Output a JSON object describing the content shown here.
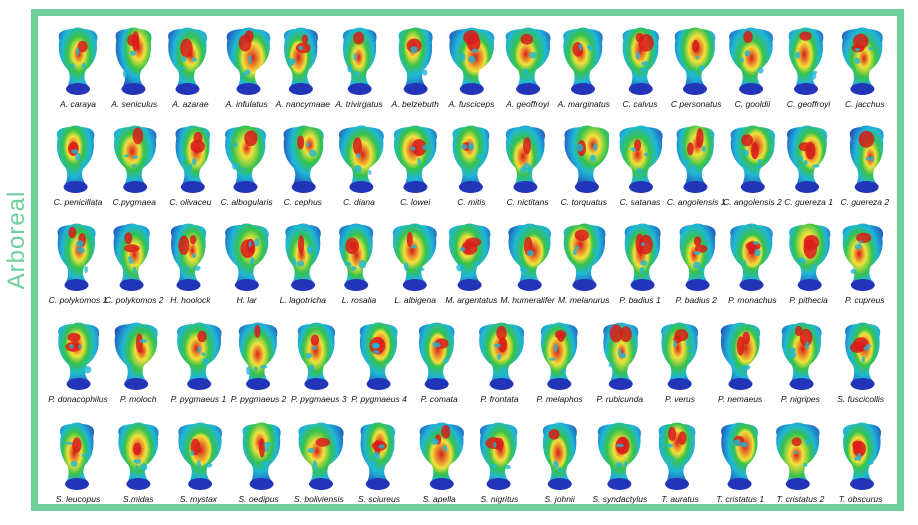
{
  "section_label": "Arboreal",
  "colors": {
    "frame": "#6fcf9a",
    "heat_low": "#2234b8",
    "heat_mid_low": "#1fb7d6",
    "heat_mid": "#37c24a",
    "heat_mid_high": "#f3e23a",
    "heat_high": "#d81b1b"
  },
  "rows": [
    {
      "items": [
        {
          "label": "A. caraya"
        },
        {
          "label": "A. seniculus"
        },
        {
          "label": "A. azarae"
        },
        {
          "label": "A. infulatus"
        },
        {
          "label": "A. nancymaae"
        },
        {
          "label": "A. trivirgatus"
        },
        {
          "label": "A. belzebuth"
        },
        {
          "label": "A. fusciceps"
        },
        {
          "label": "A. geoffroyi"
        },
        {
          "label": "A. marginatus"
        },
        {
          "label": "C. calvus"
        },
        {
          "label": "C personatus"
        },
        {
          "label": "C. gooldii"
        },
        {
          "label": "C. geoffroyi"
        },
        {
          "label": "C. jacchus"
        }
      ]
    },
    {
      "items": [
        {
          "label": "C. penicillata"
        },
        {
          "label": "C.pygmaea"
        },
        {
          "label": "C. olivaceu"
        },
        {
          "label": "C. albogularis"
        },
        {
          "label": "C. cephus"
        },
        {
          "label": "C. diana"
        },
        {
          "label": "C. lowei"
        },
        {
          "label": "C. mitis"
        },
        {
          "label": "C. nictitans"
        },
        {
          "label": "C. torquatus"
        },
        {
          "label": "C. satanas"
        },
        {
          "label": "C. angolensis 1"
        },
        {
          "label": "C. angolensis 2"
        },
        {
          "label": "C. guereza 1"
        },
        {
          "label": "C. guereza 2"
        }
      ]
    },
    {
      "items": [
        {
          "label": "C. polykomos 1"
        },
        {
          "label": "C. polykomos 2"
        },
        {
          "label": "H. hoolock"
        },
        {
          "label": "H. lar"
        },
        {
          "label": "L. lagotricha"
        },
        {
          "label": "L. rosalia"
        },
        {
          "label": "L. albigena"
        },
        {
          "label": "M. argentatus"
        },
        {
          "label": "M. humeralifer"
        },
        {
          "label": "M. melanurus"
        },
        {
          "label": "P. badius 1"
        },
        {
          "label": "P. badius 2"
        },
        {
          "label": "P. monachus"
        },
        {
          "label": "P. pithecia"
        },
        {
          "label": "P. cupreus"
        }
      ]
    },
    {
      "items": [
        {
          "label": "P. donacophilus"
        },
        {
          "label": "P. moloch"
        },
        {
          "label": "P. pygmaeus 1"
        },
        {
          "label": "P. pygmaeus 2"
        },
        {
          "label": "P. pygmaeus 3"
        },
        {
          "label": "P. pygmaeus 4"
        },
        {
          "label": "P. comata"
        },
        {
          "label": "P. frontata"
        },
        {
          "label": "P. melaphos"
        },
        {
          "label": "P. rubicunda"
        },
        {
          "label": "P. verus"
        },
        {
          "label": "P. nemaeus"
        },
        {
          "label": "P. nigripes"
        },
        {
          "label": "S. fuscicollis"
        }
      ]
    },
    {
      "items": [
        {
          "label": "S. leucopus"
        },
        {
          "label": "S.midas"
        },
        {
          "label": "S. mystax"
        },
        {
          "label": "S. oedipus"
        },
        {
          "label": "S. boliviensis"
        },
        {
          "label": "S. sciureus"
        },
        {
          "label": "S. apella"
        },
        {
          "label": "S. nigritus"
        },
        {
          "label": "S. johnii"
        },
        {
          "label": "S. syndactylus"
        },
        {
          "label": "T. auratus"
        },
        {
          "label": "T. cristatus 1"
        },
        {
          "label": "T. cristatus 2"
        },
        {
          "label": "T. obscurus"
        }
      ]
    }
  ]
}
